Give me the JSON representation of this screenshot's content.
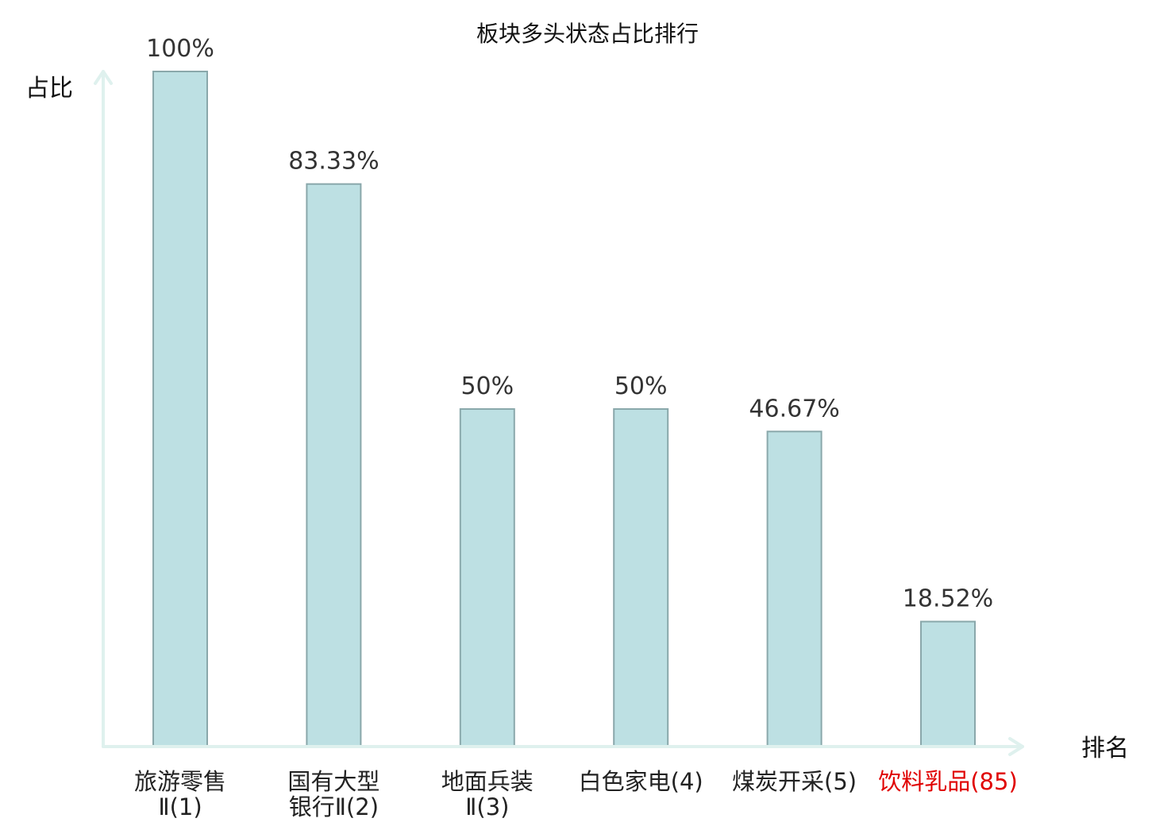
{
  "chart_data": {
    "type": "bar",
    "title": "板块多头状态占比排行",
    "ylabel": "占比",
    "xlabel": "排名",
    "ylim": [
      0,
      100
    ],
    "grid": false,
    "categories": [
      [
        "旅游零售",
        "Ⅱ(1)"
      ],
      [
        "国有大型",
        "银行Ⅱ(2)"
      ],
      [
        "地面兵装",
        "Ⅱ(3)"
      ],
      [
        "白色家电(4)"
      ],
      [
        "煤炭开采(5)"
      ],
      [
        "饮料乳品(85)"
      ]
    ],
    "values": [
      100,
      83.33,
      50,
      50,
      46.67,
      18.52
    ],
    "value_labels": [
      "100%",
      "83.33%",
      "50%",
      "50%",
      "46.67%",
      "18.52%"
    ],
    "highlight_index": 5,
    "colors": {
      "bar_fill": "#bde0e3",
      "bar_stroke": "#8aa8ab",
      "axis": "#dff1ee",
      "highlight": "#e00000"
    }
  }
}
